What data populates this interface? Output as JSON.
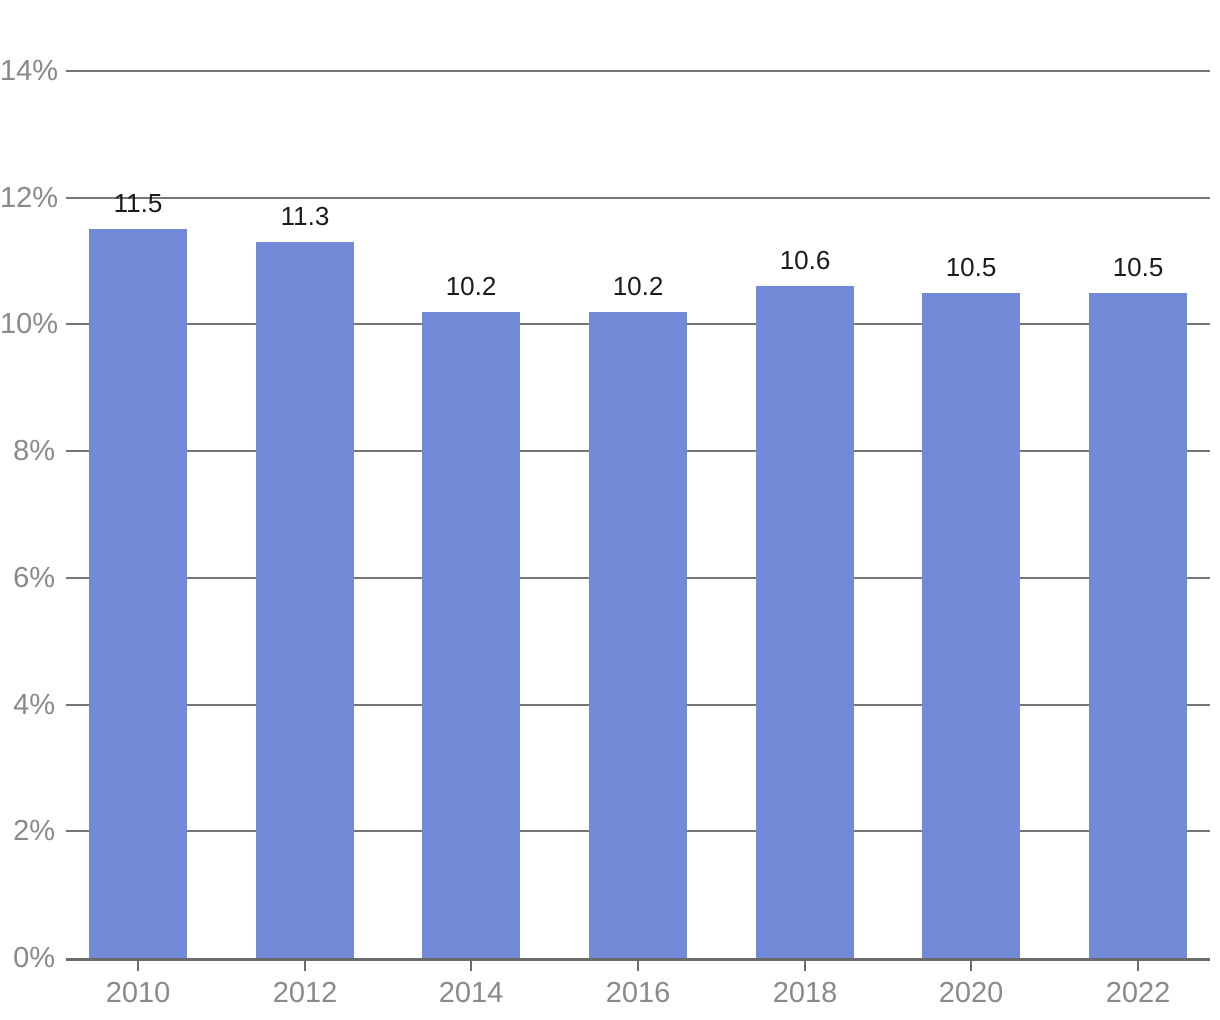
{
  "chart_data": {
    "type": "bar",
    "title": "",
    "xlabel": "",
    "ylabel": "",
    "categories": [
      "2010",
      "2012",
      "2014",
      "2016",
      "2018",
      "2020",
      "2022"
    ],
    "values": [
      11.5,
      11.3,
      10.2,
      10.2,
      10.6,
      10.5,
      10.5
    ],
    "data_labels": [
      "11.5",
      "11.3",
      "10.2",
      "10.2",
      "10.6",
      "10.5",
      "10.5"
    ],
    "y_ticks": [
      {
        "value": 0,
        "label": "0%"
      },
      {
        "value": 2,
        "label": "2%"
      },
      {
        "value": 4,
        "label": "4%"
      },
      {
        "value": 6,
        "label": "6%"
      },
      {
        "value": 8,
        "label": "8%"
      },
      {
        "value": 10,
        "label": "10%"
      },
      {
        "value": 12,
        "label": "12%"
      },
      {
        "value": 14,
        "label": "14%"
      }
    ],
    "ylim": [
      0,
      14
    ],
    "grid": true,
    "legend": "none",
    "colors": {
      "bar": "#7189d6",
      "gridline": "#757575",
      "axis_line": "#6b6b6b",
      "tick_label": "#8a8a8a",
      "data_label": "#1b1b1b",
      "background": "#ffffff"
    }
  }
}
